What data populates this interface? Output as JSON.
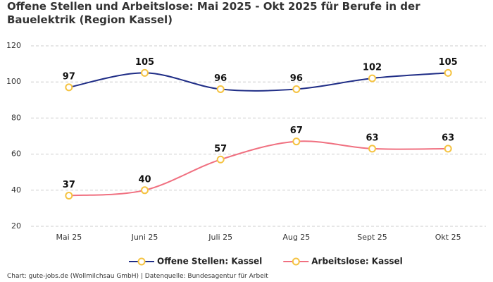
{
  "chart_data": {
    "type": "line",
    "title": "Offene Stellen und Arbeitslose: Mai 2025 - Okt 2025 für Berufe in der Bauelektrik (Region Kassel)",
    "footer": "Chart: gute-jobs.de (Wollmilchsau GmbH) | Datenquelle: Bundesagentur für Arbeit",
    "categories": [
      "Mai 25",
      "Juni 25",
      "Juli 25",
      "Aug 25",
      "Sept 25",
      "Okt 25"
    ],
    "series": [
      {
        "name": "Offene Stellen: Kassel",
        "color": "#1f2d86",
        "values": [
          97,
          105,
          96,
          96,
          102,
          105
        ]
      },
      {
        "name": "Arbeitslose: Kassel",
        "color": "#f07080",
        "values": [
          37,
          40,
          57,
          67,
          63,
          63
        ]
      }
    ],
    "marker_color": "#f5c342",
    "ylim": [
      20,
      120
    ],
    "yticks": [
      20,
      40,
      60,
      80,
      100,
      120
    ],
    "grid": true,
    "legend": "bottom"
  }
}
